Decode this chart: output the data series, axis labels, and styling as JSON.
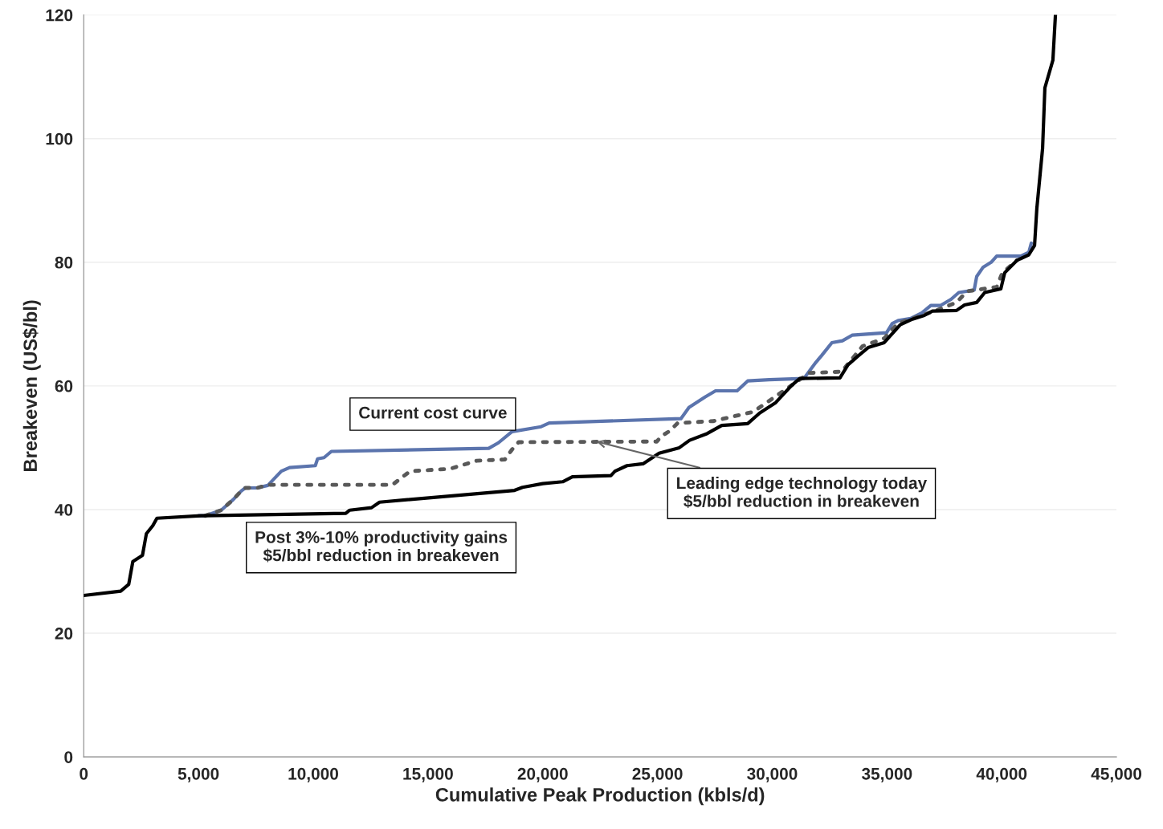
{
  "chart_data": {
    "type": "line",
    "xlabel": "Cumulative Peak Production (kbls/d)",
    "ylabel": "Breakeven (US$/bl)",
    "xlim": [
      0,
      45000
    ],
    "ylim": [
      0,
      120
    ],
    "xticks": [
      {
        "value": 0,
        "label": "0"
      },
      {
        "value": 5000,
        "label": "5,000"
      },
      {
        "value": 10000,
        "label": "10,000"
      },
      {
        "value": 15000,
        "label": "15,000"
      },
      {
        "value": 20000,
        "label": "20,000"
      },
      {
        "value": 25000,
        "label": "25,000"
      },
      {
        "value": 30000,
        "label": "30,000"
      },
      {
        "value": 35000,
        "label": "35,000"
      },
      {
        "value": 40000,
        "label": "40,000"
      },
      {
        "value": 45000,
        "label": "45,000"
      }
    ],
    "yticks": [
      0,
      20,
      40,
      60,
      80,
      100,
      120
    ],
    "grid": "y",
    "legend": false,
    "series": [
      {
        "color": "#5b74ad",
        "line_style": "solid",
        "x": [
          5000,
          5290,
          5990,
          6510,
          6860,
          7040,
          7560,
          8020,
          8610,
          8970,
          10090,
          10190,
          10470,
          10790,
          17650,
          18070,
          18660,
          19930,
          20280,
          26020,
          26370,
          27070,
          27530,
          28470,
          28930,
          29870,
          31380,
          31900,
          32150,
          32600,
          33060,
          33480,
          34980,
          35230,
          35510,
          36030,
          36520,
          36910,
          37330,
          37790,
          38130,
          38800,
          38910,
          39190,
          39540,
          39780,
          40830,
          41180,
          41290
        ],
        "values": [
          39.0,
          39.0,
          39.9,
          41.6,
          43.0,
          43.5,
          43.5,
          43.9,
          46.2,
          46.8,
          47.1,
          48.2,
          48.4,
          49.4,
          49.9,
          50.8,
          52.6,
          53.4,
          54.0,
          54.7,
          56.5,
          58.2,
          59.2,
          59.2,
          60.8,
          61.0,
          61.2,
          63.8,
          64.9,
          67.0,
          67.3,
          68.2,
          68.6,
          70.1,
          70.6,
          70.9,
          71.8,
          73.0,
          73.0,
          74.0,
          75.1,
          75.5,
          77.7,
          79.2,
          80.0,
          81.0,
          81.0,
          81.6,
          83.1
        ]
      },
      {
        "color": "#595959",
        "line_style": "dotted",
        "x": [
          5290,
          5990,
          6510,
          6860,
          7040,
          7560,
          8020,
          13450,
          13970,
          14220,
          15970,
          16770,
          17120,
          18350,
          18660,
          18950,
          24970,
          25180,
          25530,
          25880,
          27420,
          29170,
          30850,
          31620,
          33020,
          33930,
          34880,
          35470,
          37220,
          38030,
          38490,
          39780,
          40030,
          40660
        ],
        "values": [
          39.0,
          39.9,
          41.6,
          43.0,
          43.5,
          43.5,
          44.0,
          44.0,
          45.5,
          46.2,
          46.6,
          47.5,
          47.9,
          48.1,
          49.7,
          50.9,
          51.0,
          51.9,
          52.7,
          54.0,
          54.3,
          55.8,
          60.1,
          62.1,
          62.3,
          66.4,
          67.7,
          70.1,
          72.3,
          73.5,
          75.3,
          76.0,
          78.3,
          80.3
        ]
      },
      {
        "color": "#000000",
        "line_style": "solid",
        "x": [
          0,
          1610,
          1960,
          2140,
          2560,
          2730,
          3010,
          3190,
          5110,
          11420,
          11590,
          12540,
          12890,
          18770,
          19120,
          20000,
          20870,
          21290,
          22970,
          23150,
          23670,
          24370,
          25070,
          25950,
          26400,
          27170,
          27800,
          28930,
          29450,
          30150,
          30850,
          31200,
          32950,
          33300,
          33760,
          34180,
          34880,
          35580,
          36110,
          36630,
          36980,
          38030,
          38380,
          38910,
          39260,
          39960,
          40130,
          40660,
          41180,
          41430,
          41530,
          41780,
          41880,
          42230,
          42340
        ],
        "values": [
          26.1,
          26.8,
          27.9,
          31.6,
          32.6,
          36.1,
          37.4,
          38.6,
          39.0,
          39.4,
          39.9,
          40.3,
          41.2,
          43.1,
          43.6,
          44.2,
          44.5,
          45.3,
          45.5,
          46.2,
          47.1,
          47.4,
          49.1,
          50.0,
          51.2,
          52.3,
          53.6,
          53.9,
          55.6,
          57.3,
          60.1,
          61.2,
          61.3,
          63.4,
          64.9,
          66.2,
          67.0,
          69.9,
          70.8,
          71.4,
          72.1,
          72.2,
          73.1,
          73.5,
          75.1,
          75.7,
          78.3,
          80.3,
          81.2,
          82.7,
          88.7,
          98.4,
          108.2,
          112.7,
          120
        ]
      }
    ],
    "annotations": [
      "Current cost curve",
      {
        "text": "Leading edge technology today\n$5/bbl reduction in breakeven",
        "x": 22340,
        "y": 51.0
      },
      "Post 3%-10% productivity gains\n$5/bbl reduction in breakeven"
    ]
  }
}
